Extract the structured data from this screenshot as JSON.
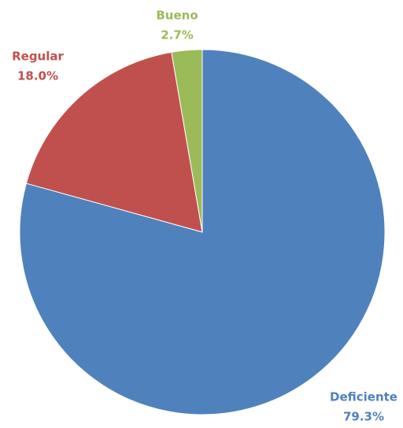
{
  "chart_data": {
    "type": "pie",
    "categories": [
      "Deficiente",
      "Regular",
      "Bueno"
    ],
    "values": [
      79.3,
      18.0,
      2.7
    ],
    "value_labels": [
      "79.3%",
      "18.0%",
      "2.7%"
    ],
    "colors": [
      "#4f81bd",
      "#c0504d",
      "#9bbb59"
    ]
  }
}
